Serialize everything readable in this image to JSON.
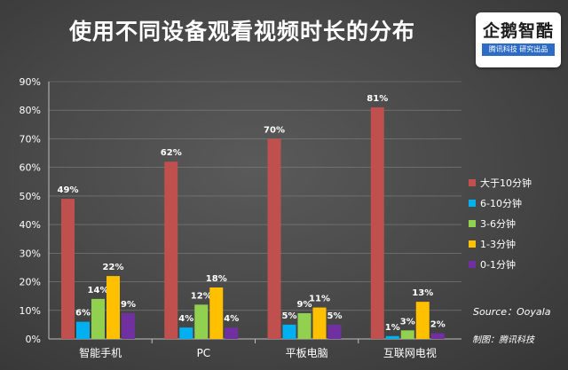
{
  "title": "使用不同设备观看视频时长的分布",
  "logo": {
    "text": "企鹅智酷",
    "subtitle": "腾讯科技  研究出品"
  },
  "source_text": "Source：Ooyala",
  "credit_text": "制图：腾讯科技",
  "colors": {
    "series": [
      "#c0504d",
      "#00b0f0",
      "#92d050",
      "#ffc000",
      "#7030a0"
    ],
    "text": "#ffffff",
    "axis": "#bfbfbf",
    "grid": "#808080"
  },
  "chart_data": {
    "type": "bar",
    "title": "使用不同设备观看视频时长的分布",
    "categories": [
      "智能手机",
      "PC",
      "平板电脑",
      "互联网电视"
    ],
    "series": [
      {
        "name": "大于10分钟",
        "values": [
          49,
          62,
          70,
          81
        ]
      },
      {
        "name": "6-10分钟",
        "values": [
          6,
          4,
          5,
          1
        ]
      },
      {
        "name": "3-6分钟",
        "values": [
          14,
          12,
          9,
          3
        ]
      },
      {
        "name": "1-3分钟",
        "values": [
          22,
          18,
          11,
          13
        ]
      },
      {
        "name": "0-1分钟",
        "values": [
          9,
          4,
          5,
          2
        ]
      }
    ],
    "value_labels": [
      [
        "49%",
        "62%",
        "70%",
        "81%"
      ],
      [
        "6%",
        "4%",
        "5%",
        "1%"
      ],
      [
        "14%",
        "12%",
        "9%",
        "3%"
      ],
      [
        "22%",
        "18%",
        "11%",
        "13%"
      ],
      [
        "9%",
        "4%",
        "5%",
        "2%"
      ]
    ],
    "y_ticks": [
      "0%",
      "10%",
      "20%",
      "30%",
      "40%",
      "50%",
      "60%",
      "70%",
      "80%",
      "90%"
    ],
    "ylim": [
      0,
      90
    ],
    "grid": true,
    "legend_position": "right",
    "xlabel": "",
    "ylabel": ""
  }
}
